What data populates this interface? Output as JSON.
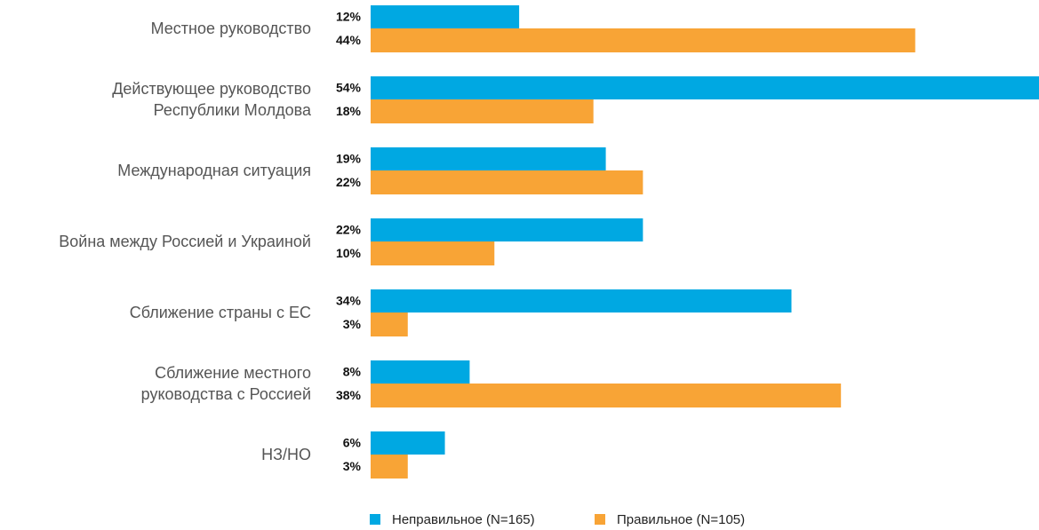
{
  "chart_data": {
    "type": "barh",
    "categories": [
      "Местное руководство",
      "Действующее руководство\nРеспублики Молдова",
      "Международная ситуация",
      "Война между Россией и Украиной",
      "Сближение страны с ЕС",
      "Сближение местного\nруководства с Россией",
      "НЗ/НО"
    ],
    "series": [
      {
        "name": "Неправильное (N=165)",
        "color": "#00a8e2",
        "values": [
          12,
          54,
          19,
          22,
          34,
          8,
          6
        ],
        "value_labels": [
          "12%",
          "54%",
          "19%",
          "22%",
          "34%",
          "8%",
          "6%"
        ]
      },
      {
        "name": "Правильное (N=105)",
        "color": "#f8a436",
        "values": [
          44,
          18,
          22,
          10,
          3,
          38,
          3
        ],
        "value_labels": [
          "44%",
          "18%",
          "22%",
          "10%",
          "3%",
          "38%",
          "3%"
        ]
      }
    ],
    "xlim": [
      0,
      54
    ],
    "legend": "bottom"
  }
}
